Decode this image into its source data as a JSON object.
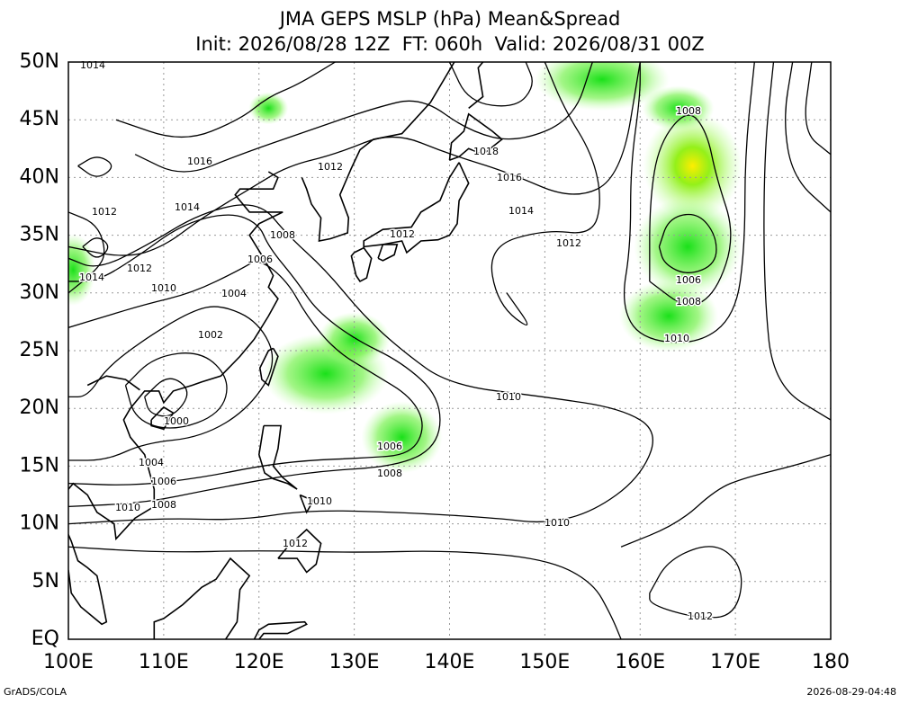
{
  "header": {
    "title": "JMA GEPS MSLP (hPa) Mean&Spread",
    "subtitle": "Init: 2026/08/28 12Z  FT: 060h  Valid: 2026/08/31 00Z"
  },
  "map": {
    "lat_labels": [
      "EQ",
      "5N",
      "10N",
      "15N",
      "20N",
      "25N",
      "30N",
      "35N",
      "40N",
      "45N",
      "50N"
    ],
    "lon_labels": [
      "100E",
      "110E",
      "120E",
      "130E",
      "140E",
      "150E",
      "160E",
      "170E",
      "180"
    ],
    "contour_labels": [
      "1014",
      "1016",
      "1012",
      "1018",
      "1016",
      "1014",
      "1012",
      "1014",
      "1008",
      "1012",
      "1012",
      "1006",
      "1012",
      "1014",
      "1010",
      "1004",
      "1002",
      "1000",
      "1010",
      "1006",
      "1008",
      "1004",
      "1006",
      "1008",
      "1010",
      "1010",
      "1010",
      "1012",
      "1012",
      "1008",
      "1006",
      "1008",
      "1010"
    ]
  },
  "footer": {
    "left": "GrADS/COLA",
    "right": "2026-08-29-04:48"
  }
}
